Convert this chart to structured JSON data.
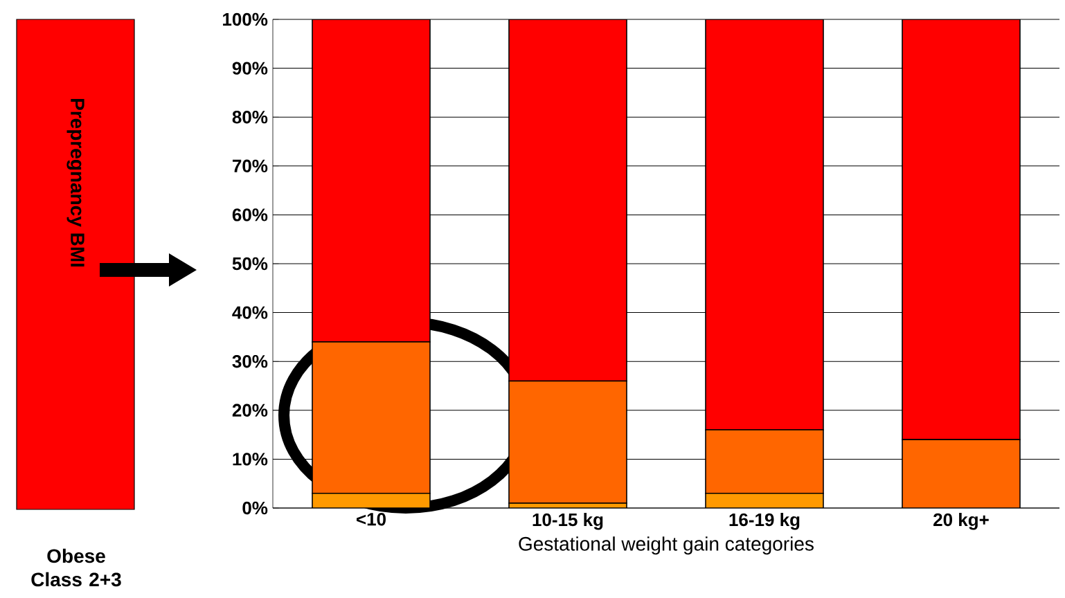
{
  "chart_data": {
    "type": "bar",
    "stacked": true,
    "xlabel": "Gestational weight gain categories",
    "categories": [
      "<10",
      "10-15 kg",
      "16-19 kg",
      "20 kg+"
    ],
    "series": [
      {
        "color": "#ff9900",
        "values": [
          3,
          1,
          3,
          0
        ]
      },
      {
        "color": "#ff6600",
        "values": [
          31,
          25,
          13,
          14
        ]
      },
      {
        "color": "#ff0000",
        "values": [
          66,
          74,
          84,
          86
        ]
      }
    ],
    "ylim": [
      0,
      100
    ],
    "yticks": [
      {
        "value": 0,
        "label": "0%"
      },
      {
        "value": 10,
        "label": "10%"
      },
      {
        "value": 20,
        "label": "20%"
      },
      {
        "value": 30,
        "label": "30%"
      },
      {
        "value": 40,
        "label": "40%"
      },
      {
        "value": 50,
        "label": "50%"
      },
      {
        "value": 60,
        "label": "60%"
      },
      {
        "value": 70,
        "label": "70%"
      },
      {
        "value": 80,
        "label": "80%"
      },
      {
        "value": 90,
        "label": "90%"
      },
      {
        "value": 100,
        "label": "100%"
      }
    ],
    "grid": "y",
    "annotations": [
      "Prepregnancy BMI",
      "Obese Class 2+3"
    ]
  }
}
